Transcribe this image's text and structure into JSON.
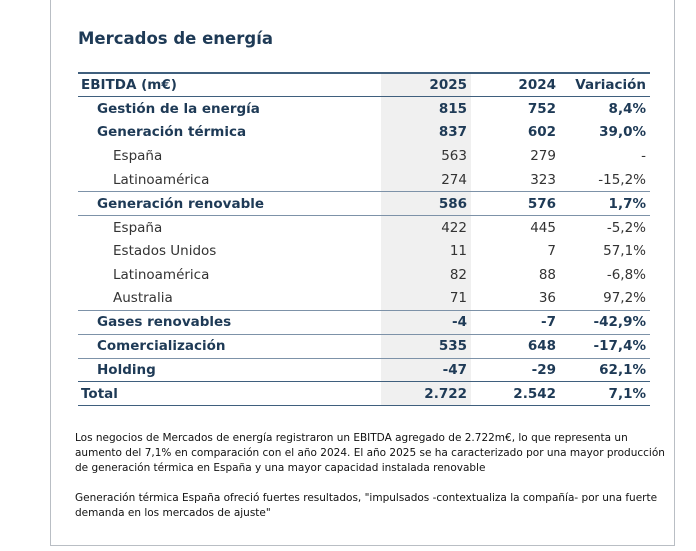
{
  "header": {
    "title": "Mercados de energía"
  },
  "table": {
    "columns": [
      "EBITDA (m€)",
      "2025",
      "2024",
      "Variación"
    ],
    "rows": [
      [
        "Gestión de la energía",
        "815",
        "752",
        "8,4%"
      ],
      [
        "Generación térmica",
        "837",
        "602",
        "39,0%"
      ],
      [
        "España",
        "563",
        "279",
        "-"
      ],
      [
        "Latinoamérica",
        "274",
        "323",
        "-15,2%"
      ],
      [
        "Generación renovable",
        "586",
        "576",
        "1,7%"
      ],
      [
        "España",
        "422",
        "445",
        "-5,2%"
      ],
      [
        "Estados Unidos",
        "11",
        "7",
        "57,1%"
      ],
      [
        "Latinoamérica",
        "82",
        "88",
        "-6,8%"
      ],
      [
        "Australia",
        "71",
        "36",
        "97,2%"
      ],
      [
        "Gases renovables",
        "-4",
        "-7",
        "-42,9%"
      ],
      [
        "Comercialización",
        "535",
        "648",
        "-17,4%"
      ],
      [
        "Holding",
        "-47",
        "-29",
        "62,1%"
      ],
      [
        "Total",
        "2.722",
        "2.542",
        "7,1%"
      ]
    ]
  },
  "paragraphs": [
    "Los negocios de Mercados de energía registraron un EBITDA agregado de 2.722m€, lo que representa un aumento del 7,1% en comparación con el año 2024. El año 2025 se ha caracterizado por una mayor producción de generación térmica en España y una mayor capacidad instalada renovable",
    "Generación térmica España ofreció fuertes resultados, \"impulsados -contextualiza la compañía- por una fuerte demanda en los mercados de ajuste\""
  ]
}
